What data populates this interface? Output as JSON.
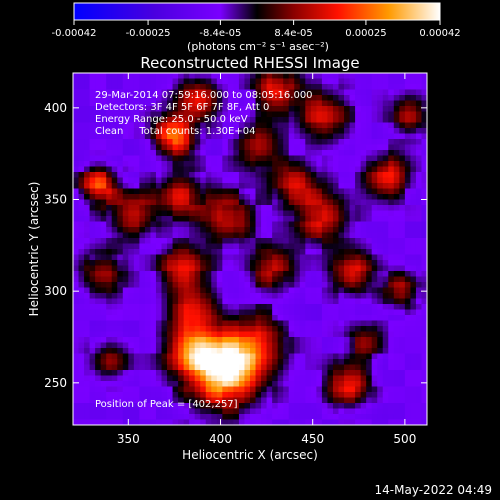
{
  "chart_data": {
    "type": "heatmap",
    "title": "Reconstructed RHESSI Image",
    "xlabel": "Heliocentric X (arcsec)",
    "ylabel": "Heliocentric Y (arcsec)",
    "xlim": [
      320,
      512
    ],
    "ylim": [
      227,
      419
    ],
    "x_ticks": [
      350,
      400,
      450,
      500
    ],
    "y_ticks": [
      250,
      300,
      350,
      400
    ],
    "x_tick_labels": [
      "350",
      "400",
      "450",
      "500"
    ],
    "y_tick_labels": [
      "250",
      "300",
      "350",
      "400"
    ],
    "colorbar": {
      "ticks": [
        "-0.00042",
        "-0.00025",
        "-8.4e-05",
        "8.4e-05",
        "0.00025",
        "0.00042"
      ],
      "units": "(photons cm⁻² s⁻¹ asec⁻²)",
      "range": [
        -0.00042,
        0.00042
      ]
    },
    "annotations": [
      "29-Mar-2014 07:59:16.000 to 08:05:16.000",
      "Detectors: 3F 4F 5F 6F 7F 8F, Att 0",
      "Energy Range: 25.0 - 50.0 keV",
      "Clean     Total counts: 1.30E+04"
    ],
    "peak_label": "Position of Peak = [402,257]",
    "peak": [
      402,
      257
    ],
    "emission_blobs": [
      {
        "x": 402,
        "y": 257,
        "amp": 1.0,
        "sigma": 14
      },
      {
        "x": 385,
        "y": 268,
        "amp": 0.55,
        "sigma": 10
      },
      {
        "x": 420,
        "y": 272,
        "amp": 0.45,
        "sigma": 11
      },
      {
        "x": 470,
        "y": 249,
        "amp": 0.6,
        "sigma": 8
      },
      {
        "x": 385,
        "y": 290,
        "amp": 0.5,
        "sigma": 9
      },
      {
        "x": 380,
        "y": 312,
        "amp": 0.55,
        "sigma": 9
      },
      {
        "x": 428,
        "y": 312,
        "amp": 0.45,
        "sigma": 9
      },
      {
        "x": 455,
        "y": 340,
        "amp": 0.5,
        "sigma": 10
      },
      {
        "x": 440,
        "y": 358,
        "amp": 0.45,
        "sigma": 9
      },
      {
        "x": 472,
        "y": 310,
        "amp": 0.55,
        "sigma": 8
      },
      {
        "x": 498,
        "y": 300,
        "amp": 0.45,
        "sigma": 7
      },
      {
        "x": 490,
        "y": 363,
        "amp": 0.55,
        "sigma": 8
      },
      {
        "x": 455,
        "y": 395,
        "amp": 0.5,
        "sigma": 10
      },
      {
        "x": 420,
        "y": 380,
        "amp": 0.4,
        "sigma": 9
      },
      {
        "x": 430,
        "y": 410,
        "amp": 0.55,
        "sigma": 8
      },
      {
        "x": 375,
        "y": 385,
        "amp": 0.7,
        "sigma": 8
      },
      {
        "x": 388,
        "y": 405,
        "amp": 0.55,
        "sigma": 8
      },
      {
        "x": 404,
        "y": 340,
        "amp": 0.5,
        "sigma": 10
      },
      {
        "x": 378,
        "y": 352,
        "amp": 0.5,
        "sigma": 9
      },
      {
        "x": 353,
        "y": 342,
        "amp": 0.5,
        "sigma": 9
      },
      {
        "x": 334,
        "y": 358,
        "amp": 0.65,
        "sigma": 7
      },
      {
        "x": 336,
        "y": 310,
        "amp": 0.45,
        "sigma": 8
      },
      {
        "x": 340,
        "y": 262,
        "amp": 0.35,
        "sigma": 7
      },
      {
        "x": 502,
        "y": 395,
        "amp": 0.45,
        "sigma": 7
      },
      {
        "x": 478,
        "y": 272,
        "amp": 0.35,
        "sigma": 7
      }
    ],
    "background_level": -0.28,
    "grid": false
  },
  "footer": {
    "timestamp": "14-May-2022 04:49"
  }
}
